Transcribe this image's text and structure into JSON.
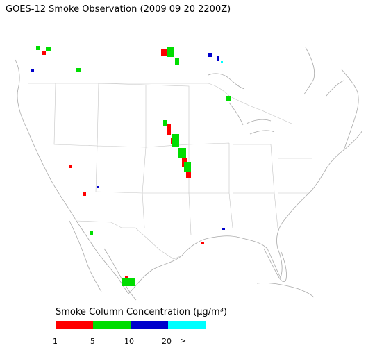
{
  "title": "GOES-12 Smoke Observation (2009 09 20  2200Z)",
  "legend": {
    "title": "Smoke Column Concentration (μg/m³)",
    "colors": [
      "#ff0000",
      "#00dd00",
      "#0000cc",
      "#00ffff"
    ],
    "ticks": [
      "1",
      "5",
      "10",
      "20"
    ],
    "overflow": ">"
  }
}
